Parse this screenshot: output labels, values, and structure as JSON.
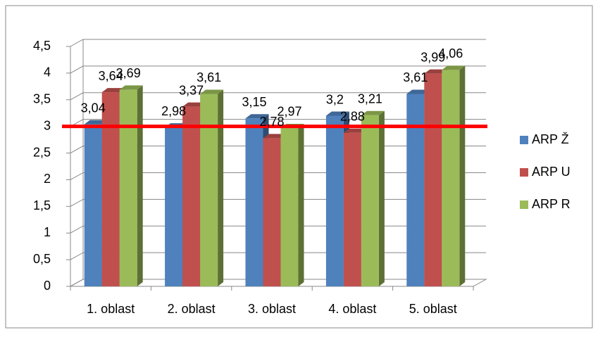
{
  "chart_data": {
    "type": "bar3d",
    "categories": [
      "1. oblast",
      "2. oblast",
      "3. oblast",
      "4. oblast",
      "5. oblast"
    ],
    "series": [
      {
        "name": "ARP Ž",
        "color": "#4f81bd",
        "values": [
          3.04,
          2.98,
          3.15,
          3.2,
          3.61
        ],
        "value_labels": [
          "3,04",
          "2,98",
          "3,15",
          "3,2",
          "3,61"
        ]
      },
      {
        "name": "ARP U",
        "color": "#c0504d",
        "values": [
          3.64,
          3.37,
          2.78,
          2.88,
          3.99
        ],
        "value_labels": [
          "3,64",
          "3,37",
          "2,78",
          "2,88",
          "3,99"
        ]
      },
      {
        "name": "ARP R",
        "color": "#9bbb59",
        "values": [
          3.69,
          3.61,
          2.97,
          3.21,
          4.06
        ],
        "value_labels": [
          "3,69",
          "3,61",
          "2,97",
          "3,21",
          "4,06"
        ]
      }
    ],
    "ylim": [
      0,
      4.5
    ],
    "yticks": [
      0,
      {
        "value": 0.5,
        "label": "0,5"
      },
      1,
      {
        "value": 1.5,
        "label": "1,5"
      },
      2,
      {
        "value": 2.5,
        "label": "2,5"
      },
      3,
      {
        "value": 3.5,
        "label": "3,5"
      },
      4,
      {
        "value": 4.5,
        "label": "4,5"
      }
    ],
    "grid": true,
    "legend": "right",
    "reference_line": {
      "value": 3,
      "color": "#ff0000"
    }
  }
}
